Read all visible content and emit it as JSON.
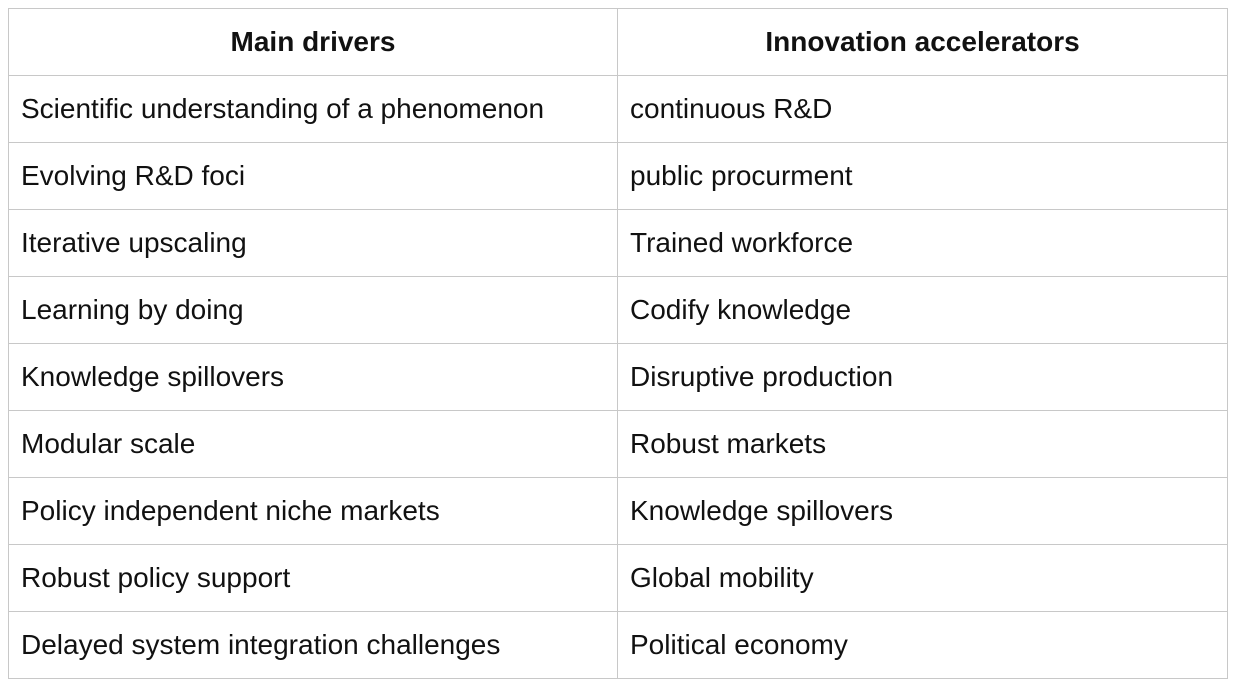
{
  "table": {
    "headers": [
      "Main drivers",
      "Innovation accelerators"
    ],
    "rows": [
      [
        "Scientific understanding of a phenomenon",
        "continuous R&D"
      ],
      [
        "Evolving R&D foci",
        "public procurment"
      ],
      [
        "Iterative upscaling",
        "Trained workforce"
      ],
      [
        "Learning by doing",
        "Codify knowledge"
      ],
      [
        "Knowledge spillovers",
        "Disruptive production"
      ],
      [
        "Modular scale",
        "Robust markets"
      ],
      [
        "Policy independent niche markets",
        "Knowledge spillovers"
      ],
      [
        "Robust policy support",
        "Global mobility"
      ],
      [
        "Delayed system integration challenges",
        "Political economy"
      ]
    ]
  }
}
